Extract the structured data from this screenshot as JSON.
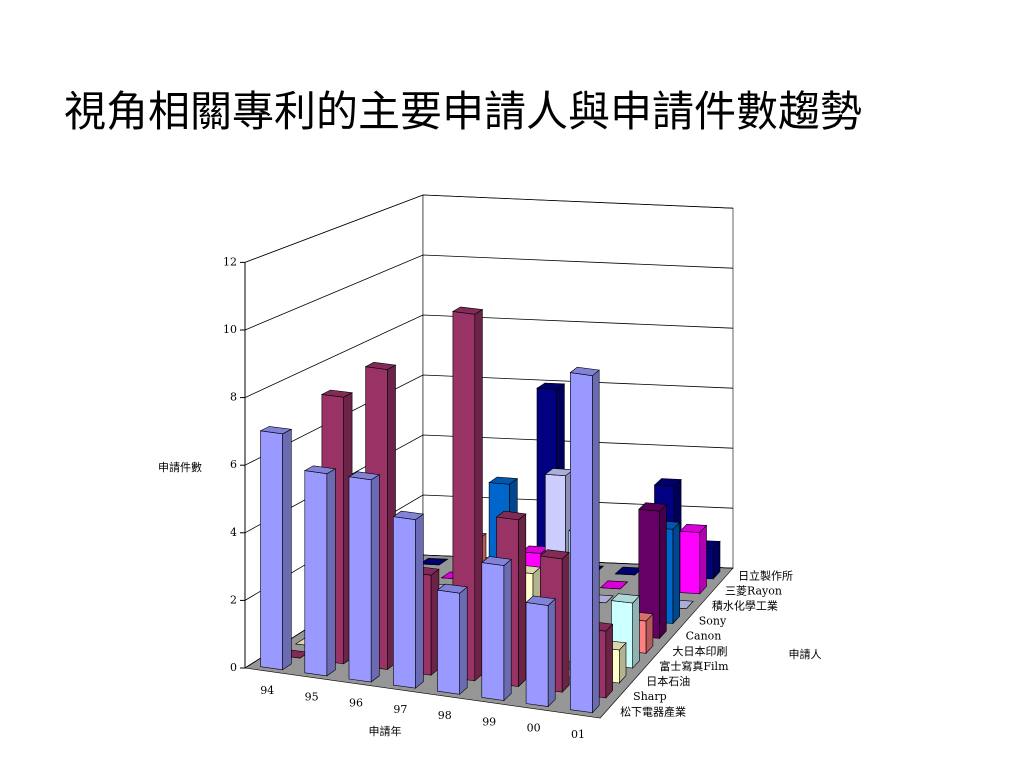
{
  "chart_data": {
    "type": "bar3d",
    "title": "視角相關專利的主要申請人與申請件數趨勢",
    "y_label": "申請件數",
    "x_label": "申請年",
    "z_label": "申請人",
    "categories": [
      "94",
      "95",
      "96",
      "97",
      "98",
      "99",
      "00",
      "01"
    ],
    "ylim": [
      0,
      12
    ],
    "yticks": [
      0,
      2,
      4,
      6,
      8,
      10,
      12
    ],
    "grid": true,
    "series": [
      {
        "name": "松下電器產業",
        "color": "#9999ff",
        "values": [
          7,
          6,
          6,
          5,
          3,
          4,
          3,
          10
        ]
      },
      {
        "name": "Sharp",
        "color": "#993366",
        "values": [
          0,
          8,
          9,
          3,
          11,
          5,
          4,
          2
        ]
      },
      {
        "name": "日本石油",
        "color": "#ffffcc",
        "values": [
          0,
          0,
          0,
          0,
          0,
          3,
          0,
          1
        ]
      },
      {
        "name": "富士寫真Film",
        "color": "#ccffff",
        "values": [
          0,
          0,
          0,
          0,
          0,
          0,
          4,
          2
        ]
      },
      {
        "name": "大日本印刷",
        "color": "#ff8080",
        "values": [
          0,
          0,
          0,
          3,
          2,
          0,
          0,
          1
        ]
      },
      {
        "name": "Canon",
        "color": "#660066",
        "values": [
          0,
          0,
          0,
          0,
          0,
          0,
          0,
          4
        ]
      },
      {
        "name": "Sony",
        "color": "#0066cc",
        "values": [
          0,
          0,
          0,
          4,
          0,
          0,
          0,
          3
        ]
      },
      {
        "name": "積水化學工業",
        "color": "#ccccff",
        "values": [
          0,
          0,
          0,
          0,
          4,
          0,
          0,
          0
        ]
      },
      {
        "name": "三菱Rayon",
        "color": "#ff00ff",
        "values": [
          0,
          0,
          0,
          1,
          2,
          0,
          0,
          2
        ]
      },
      {
        "name": "日立製作所",
        "color": "#000080",
        "values": [
          0,
          0,
          0,
          6,
          0,
          0,
          3,
          1
        ]
      }
    ]
  }
}
